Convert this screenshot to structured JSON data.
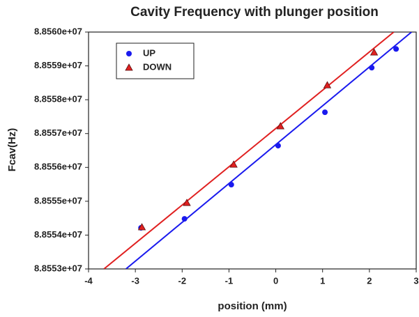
{
  "chart_data": {
    "type": "scatter",
    "title": "Cavity Frequency with plunger position",
    "x_label": "position (mm)",
    "y_label": "Fcav(Hz)",
    "xlim": [
      -4,
      3
    ],
    "xticks": [
      -4,
      -3,
      -2,
      -1,
      0,
      1,
      2,
      3
    ],
    "ylim": [
      88553000,
      88560000
    ],
    "yticks": [
      {
        "value": 88553000,
        "label": "8.8553e+07"
      },
      {
        "value": 88554000,
        "label": "8.8554e+07"
      },
      {
        "value": 88555000,
        "label": "8.8555e+07"
      },
      {
        "value": 88556000,
        "label": "8.8556e+07"
      },
      {
        "value": 88557000,
        "label": "8.8557e+07"
      },
      {
        "value": 88558000,
        "label": "8.8558e+07"
      },
      {
        "value": 88559000,
        "label": "8.8559e+07"
      },
      {
        "value": 88560000,
        "label": "8.8560e+07"
      }
    ],
    "legend": "upper-left",
    "series": [
      {
        "name": "UP",
        "color": "#1a1aee",
        "marker": "circle",
        "x": [
          -2.88,
          -1.95,
          -0.95,
          0.05,
          1.05,
          2.05,
          2.57
        ],
        "values": [
          88554214,
          88554481,
          88555490,
          88556642,
          88557630,
          88558947,
          88559500
        ]
      },
      {
        "name": "DOWN",
        "color": "#e02020",
        "marker": "triangle",
        "x": [
          -2.86,
          -1.9,
          -0.9,
          0.1,
          1.1,
          2.1
        ],
        "values": [
          88554235,
          88554955,
          88556086,
          88557218,
          88558430,
          88559400
        ]
      }
    ],
    "fit_lines": [
      {
        "color": "#1a1aee",
        "x": [
          -3.2,
          2.9
        ],
        "values": [
          88553000,
          88560000
        ]
      },
      {
        "color": "#e02020",
        "x": [
          -3.67,
          2.52
        ],
        "values": [
          88553000,
          88560000
        ]
      }
    ]
  }
}
